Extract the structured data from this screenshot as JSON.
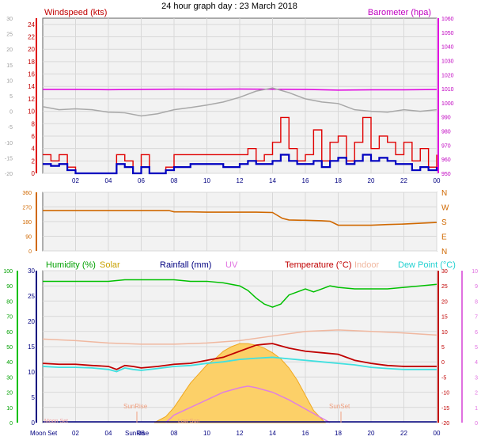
{
  "title": "24 hour graph day : 23 March 2018",
  "colors": {
    "wind": "#e00000",
    "gust": "#e00000",
    "avgwind": "#0000c0",
    "baro": "#e000e0",
    "outtemp_gray": "#a8a8a8",
    "winddir": "#d06800",
    "humidity": "#00c000",
    "solar": "#f8b830",
    "rain": "#000080",
    "uv": "#e080e0",
    "temp": "#c00000",
    "indoor": "#f0b8a0",
    "dewpoint": "#40e0e0"
  },
  "chart_data": [
    {
      "type": "line",
      "name": "wind-barometer",
      "x_ticks": [
        "02",
        "04",
        "06",
        "08",
        "10",
        "12",
        "14",
        "16",
        "18",
        "20",
        "22",
        "00"
      ],
      "left_label": "Windspeed (kts)",
      "right_label": "Barometer (hpa)",
      "left_ticks": [
        "0",
        "2",
        "4",
        "6",
        "8",
        "10",
        "12",
        "14",
        "16",
        "18",
        "20",
        "22",
        "24"
      ],
      "right_ticks": [
        "950",
        "960",
        "970",
        "980",
        "990",
        "1000",
        "1010",
        "1020",
        "1030",
        "1040",
        "1050",
        "1060"
      ],
      "outer_left_ticks": [
        "-20",
        "-15",
        "-10",
        "-5",
        "0",
        "5",
        "10",
        "15",
        "20",
        "25",
        "30"
      ],
      "left_range": [
        0,
        25
      ],
      "right_range": [
        950,
        1060
      ],
      "outer_left_range": [
        -20,
        30
      ],
      "series": [
        {
          "key": "baro",
          "x": [
            0,
            2,
            4,
            6,
            8,
            10,
            12,
            14,
            16,
            18,
            20,
            22,
            24
          ],
          "values": [
            1009.5,
            1009.5,
            1009.3,
            1009.5,
            1009.7,
            1009.6,
            1009.8,
            1009.6,
            1009.5,
            1009.0,
            1009.2,
            1009.2,
            1009.4
          ]
        },
        {
          "key": "outtemp_gray",
          "x": [
            0,
            1,
            2,
            3,
            4,
            5,
            6,
            7,
            8,
            9,
            10,
            11,
            12,
            13,
            14,
            15,
            16,
            17,
            18,
            19,
            20,
            21,
            22,
            23,
            24
          ],
          "values": [
            1.5,
            0.5,
            0.8,
            0.5,
            -0.3,
            -0.5,
            -1.5,
            -0.8,
            0.5,
            1.2,
            2.0,
            3.0,
            4.5,
            6.5,
            7.5,
            6.0,
            4.0,
            3.0,
            2.5,
            0.5,
            0.0,
            -0.3,
            0.5,
            0.0,
            0.5
          ]
        },
        {
          "key": "gust",
          "x": [
            0,
            0.5,
            1,
            1.5,
            2,
            3,
            4,
            4.5,
            5,
            5.5,
            6,
            6.5,
            7,
            7.5,
            8,
            9,
            10,
            11,
            12,
            12.5,
            13,
            13.5,
            14,
            14.5,
            15,
            15.5,
            16,
            16.5,
            17,
            17.5,
            18,
            18.5,
            19,
            19.5,
            20,
            20.5,
            21,
            21.5,
            22,
            22.5,
            23,
            23.5,
            24
          ],
          "values": [
            3,
            2,
            3,
            1,
            0,
            0,
            0,
            3,
            2,
            0,
            3,
            0,
            0,
            1,
            3,
            3,
            3,
            3,
            3,
            4,
            2,
            3,
            5,
            9,
            4,
            2,
            3,
            7,
            2,
            5,
            6,
            2,
            5,
            9,
            4,
            6,
            5,
            3,
            5,
            2,
            4,
            1,
            3
          ]
        },
        {
          "key": "avgwind",
          "x": [
            0,
            0.5,
            1,
            1.5,
            2,
            3,
            4,
            4.5,
            5,
            5.5,
            6,
            6.5,
            7,
            7.5,
            8,
            9,
            10,
            11,
            12,
            12.5,
            13,
            13.5,
            14,
            14.5,
            15,
            15.5,
            16,
            16.5,
            17,
            17.5,
            18,
            18.5,
            19,
            19.5,
            20,
            20.5,
            21,
            21.5,
            22,
            22.5,
            23,
            23.5,
            24
          ],
          "values": [
            1.5,
            1.2,
            1.5,
            0.5,
            0,
            0,
            0,
            1.5,
            1,
            0,
            1,
            0,
            0,
            0.5,
            1,
            1.5,
            1.5,
            1,
            1.5,
            2,
            1.5,
            1.5,
            2,
            3,
            2,
            1.5,
            1.5,
            2,
            1,
            2,
            2.5,
            1.5,
            2,
            3,
            2,
            2.5,
            2,
            1.5,
            1.5,
            0.5,
            1,
            0.5,
            1
          ]
        }
      ]
    },
    {
      "type": "line",
      "name": "wind-direction",
      "x_ticks": [
        "02",
        "04",
        "06",
        "08",
        "10",
        "12",
        "14",
        "16",
        "18",
        "20",
        "22",
        "00"
      ],
      "left_ticks": [
        "0",
        "90",
        "180",
        "270",
        "360"
      ],
      "right_ticks": [
        "N",
        "E",
        "S",
        "W",
        "N"
      ],
      "y_range": [
        0,
        360
      ],
      "series": [
        {
          "key": "winddir",
          "x": [
            0,
            1,
            2,
            3,
            4,
            5,
            6,
            7,
            7.7,
            8,
            9,
            10,
            11,
            12,
            13,
            14,
            14.6,
            15,
            16,
            17,
            17.5,
            18,
            19,
            20,
            21,
            22,
            23,
            24
          ],
          "values": [
            248,
            248,
            248,
            248,
            248,
            248,
            248,
            248,
            248,
            240,
            240,
            238,
            238,
            238,
            238,
            236,
            200,
            190,
            188,
            185,
            182,
            158,
            158,
            158,
            162,
            165,
            170,
            175
          ]
        }
      ]
    },
    {
      "type": "area",
      "name": "humidity-solar-temperature",
      "x_ticks": [
        "02",
        "04",
        "06",
        "08",
        "10",
        "12",
        "14",
        "16",
        "18",
        "20",
        "22",
        "00"
      ],
      "x_tick_labels_extra": [
        "Moon Set",
        "SunRise"
      ],
      "legend": [
        "Humidity (%)",
        "Solar",
        "Rainfall (mm)",
        "UV",
        "Temperature (°C)",
        "Indoor",
        "Dew Point (°C)"
      ],
      "humidity_ticks": [
        "0",
        "10",
        "20",
        "30",
        "40",
        "50",
        "60",
        "70",
        "80",
        "90",
        "100"
      ],
      "rain_ticks": [
        "0",
        "5",
        "10",
        "15",
        "20",
        "25",
        "30"
      ],
      "temp_ticks": [
        "-20",
        "-15",
        "-10",
        "-5",
        "0",
        "5",
        "10",
        "15",
        "20",
        "25",
        "30"
      ],
      "uv_ticks": [
        "0",
        "1",
        "2",
        "3",
        "4",
        "5",
        "6",
        "7",
        "8",
        "9",
        "10"
      ],
      "annotations": [
        "SunRise",
        "SunSet",
        "Moon Set",
        "Low Sun"
      ],
      "humidity_range": [
        0,
        100
      ],
      "temp_range": [
        -20,
        30
      ],
      "series": [
        {
          "key": "humidity",
          "x": [
            0,
            1,
            2,
            3,
            4,
            5,
            6,
            7,
            8,
            9,
            10,
            11,
            12,
            12.5,
            13,
            13.5,
            14,
            14.5,
            15,
            16,
            16.5,
            17,
            17.5,
            18,
            19,
            20,
            21,
            22,
            23,
            24
          ],
          "values": [
            93,
            93,
            93,
            93,
            93,
            94,
            94,
            94,
            94,
            93,
            93,
            92,
            90,
            87,
            82,
            78,
            76,
            78,
            84,
            88,
            86,
            88,
            90,
            89,
            88,
            88,
            88,
            89,
            90,
            91
          ]
        },
        {
          "key": "solar",
          "x": [
            6.8,
            7.5,
            8,
            8.5,
            9,
            9.5,
            10,
            10.5,
            11,
            11.5,
            12,
            12.5,
            13,
            13.5,
            14,
            14.5,
            15,
            15.5,
            16,
            16.5,
            17.2
          ],
          "values": [
            0,
            4,
            10,
            18,
            26,
            32,
            38,
            42,
            47,
            50,
            52,
            52,
            51,
            49,
            46,
            42,
            36,
            28,
            18,
            8,
            0
          ]
        },
        {
          "key": "uv",
          "x": [
            7.5,
            8,
            9,
            10,
            11,
            12,
            12.5,
            13,
            14,
            15,
            16,
            17,
            17.5
          ],
          "values": [
            0,
            0.5,
            1.0,
            1.5,
            2.0,
            2.3,
            2.4,
            2.3,
            2.0,
            1.5,
            0.9,
            0.3,
            0
          ]
        },
        {
          "key": "temp",
          "x": [
            0,
            1,
            2,
            3,
            4,
            4.5,
            5,
            5.5,
            6,
            7,
            8,
            9,
            10,
            11,
            12,
            12.5,
            13,
            13.5,
            14,
            15,
            16,
            17,
            18,
            19,
            20,
            21,
            22,
            23,
            24
          ],
          "values": [
            -0.5,
            -0.8,
            -0.8,
            -1.2,
            -1.5,
            -2.5,
            -1.2,
            -1.5,
            -2.0,
            -1.5,
            -0.8,
            -0.5,
            0.5,
            1.5,
            3.5,
            4.5,
            5.5,
            5.8,
            6.0,
            4.5,
            3.5,
            3.0,
            2.5,
            0.5,
            -0.5,
            -1.2,
            -1.5,
            -1.5,
            -1.5
          ]
        },
        {
          "key": "dewpoint",
          "x": [
            0,
            1,
            2,
            3,
            4,
            4.5,
            5,
            5.5,
            6,
            7,
            8,
            9,
            10,
            11,
            12,
            13,
            14,
            15,
            16,
            17,
            18,
            19,
            20,
            21,
            22,
            23,
            24
          ],
          "values": [
            -1.5,
            -1.8,
            -1.8,
            -2.0,
            -2.5,
            -3.2,
            -2.0,
            -2.5,
            -2.8,
            -2.2,
            -1.5,
            -1.2,
            -0.5,
            0.0,
            0.8,
            1.2,
            1.5,
            1.0,
            0.5,
            0.0,
            -0.5,
            -1.0,
            -1.8,
            -2.2,
            -2.5,
            -2.5,
            -2.5
          ]
        },
        {
          "key": "indoor",
          "x": [
            0,
            2,
            4,
            6,
            8,
            10,
            12,
            14,
            16,
            18,
            20,
            22,
            24
          ],
          "values": [
            7.5,
            7.0,
            6.2,
            5.8,
            5.8,
            6.2,
            7.0,
            8.5,
            10.0,
            10.5,
            10.0,
            9.5,
            8.8
          ]
        }
      ]
    }
  ]
}
